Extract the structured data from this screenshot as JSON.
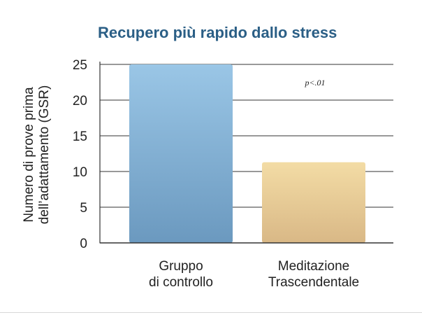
{
  "chart_data": {
    "type": "bar",
    "title": "Recupero più rapido dallo stress",
    "ylabel": "Numero di prove prima dell'adattamento (GSR)",
    "ylabel_lines": [
      "Numero di prove prima",
      "dell’adattamento (GSR)"
    ],
    "xlabel": "",
    "ylim": [
      0,
      25
    ],
    "yticks": [
      0,
      5,
      10,
      15,
      20,
      25
    ],
    "grid": true,
    "categories": [
      "Gruppo di controllo",
      "Meditazione Trascendentale"
    ],
    "category_lines": [
      [
        "Gruppo",
        "di controllo"
      ],
      [
        "Meditazione",
        "Trascendentale"
      ]
    ],
    "values": [
      25,
      11.3
    ],
    "bar_colors": [
      {
        "top": "#9ac6e6",
        "bottom": "#6b99bf"
      },
      {
        "top": "#f3dca5",
        "bottom": "#d9b886"
      }
    ],
    "annotation": "p<.01"
  }
}
